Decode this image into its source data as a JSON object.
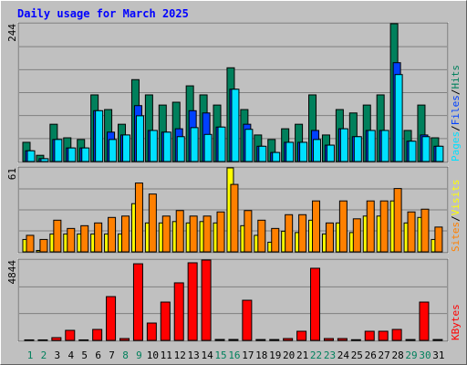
{
  "chart_data": [
    {
      "type": "bar",
      "title": "Daily usage for March 2025",
      "ylim": [
        0,
        244
      ],
      "yticks": [
        244
      ],
      "grid_divisions": 6,
      "series": [
        {
          "name": "Hits",
          "color": "#00805c",
          "values": [
            34,
            11,
            66,
            42,
            39,
            118,
            92,
            66,
            145,
            118,
            100,
            105,
            134,
            118,
            100,
            166,
            92,
            47,
            39,
            58,
            66,
            118,
            47,
            92,
            86,
            100,
            118,
            244,
            55,
            100,
            42
          ]
        },
        {
          "name": "Files",
          "color": "#0040ff",
          "values": [
            19,
            5,
            39,
            24,
            24,
            90,
            52,
            47,
            99,
            55,
            52,
            58,
            90,
            86,
            61,
            128,
            66,
            27,
            16,
            34,
            34,
            55,
            29,
            58,
            44,
            55,
            55,
            175,
            36,
            47,
            27
          ]
        },
        {
          "name": "Pages",
          "color": "#00e0ff",
          "values": [
            19,
            5,
            39,
            24,
            24,
            90,
            39,
            47,
            81,
            55,
            52,
            44,
            60,
            48,
            61,
            128,
            57,
            27,
            16,
            34,
            34,
            39,
            29,
            58,
            44,
            55,
            55,
            154,
            36,
            44,
            27
          ]
        }
      ]
    },
    {
      "type": "bar",
      "ylim": [
        0,
        61
      ],
      "yticks": [
        61
      ],
      "grid_divisions": 4,
      "series": [
        {
          "name": "Visits",
          "color": "#ffff00",
          "values": [
            9,
            1,
            13,
            13,
            13,
            13,
            13,
            13,
            35,
            21,
            21,
            22,
            21,
            22,
            21,
            61,
            19,
            12,
            7,
            15,
            14,
            23,
            13,
            21,
            14,
            26,
            26,
            37,
            21,
            25,
            9
          ]
        },
        {
          "name": "Sites",
          "color": "#ff8000",
          "values": [
            12,
            9,
            23,
            17,
            19,
            21,
            25,
            26,
            50,
            42,
            26,
            30,
            26,
            26,
            29,
            49,
            30,
            23,
            17,
            27,
            27,
            37,
            21,
            37,
            24,
            37,
            37,
            46,
            29,
            31,
            18
          ]
        }
      ]
    },
    {
      "type": "bar",
      "ylim": [
        0,
        4844
      ],
      "yticks": [
        4844
      ],
      "grid_divisions": 3,
      "categories": [
        "1",
        "2",
        "3",
        "4",
        "5",
        "6",
        "7",
        "8",
        "9",
        "10",
        "11",
        "12",
        "13",
        "14",
        "15",
        "16",
        "17",
        "18",
        "19",
        "20",
        "21",
        "22",
        "23",
        "24",
        "25",
        "26",
        "27",
        "28",
        "29",
        "30",
        "31"
      ],
      "category_colors": [
        "#00805c",
        "#00805c",
        "#000000",
        "#000000",
        "#000000",
        "#000000",
        "#000000",
        "#00805c",
        "#00805c",
        "#000000",
        "#000000",
        "#000000",
        "#000000",
        "#000000",
        "#00805c",
        "#00805c",
        "#000000",
        "#000000",
        "#000000",
        "#000000",
        "#000000",
        "#00805c",
        "#00805c",
        "#000000",
        "#000000",
        "#000000",
        "#000000",
        "#000000",
        "#00805c",
        "#00805c",
        "#000000"
      ],
      "series": [
        {
          "name": "KBytes",
          "color": "#ff0000",
          "values": [
            30,
            30,
            165,
            605,
            30,
            660,
            2640,
            110,
            4620,
            1045,
            2310,
            3470,
            4680,
            4844,
            55,
            55,
            2420,
            50,
            50,
            110,
            550,
            4350,
            110,
            110,
            40,
            550,
            550,
            660,
            50,
            2310,
            50
          ]
        }
      ]
    }
  ],
  "legend_separator": "/"
}
